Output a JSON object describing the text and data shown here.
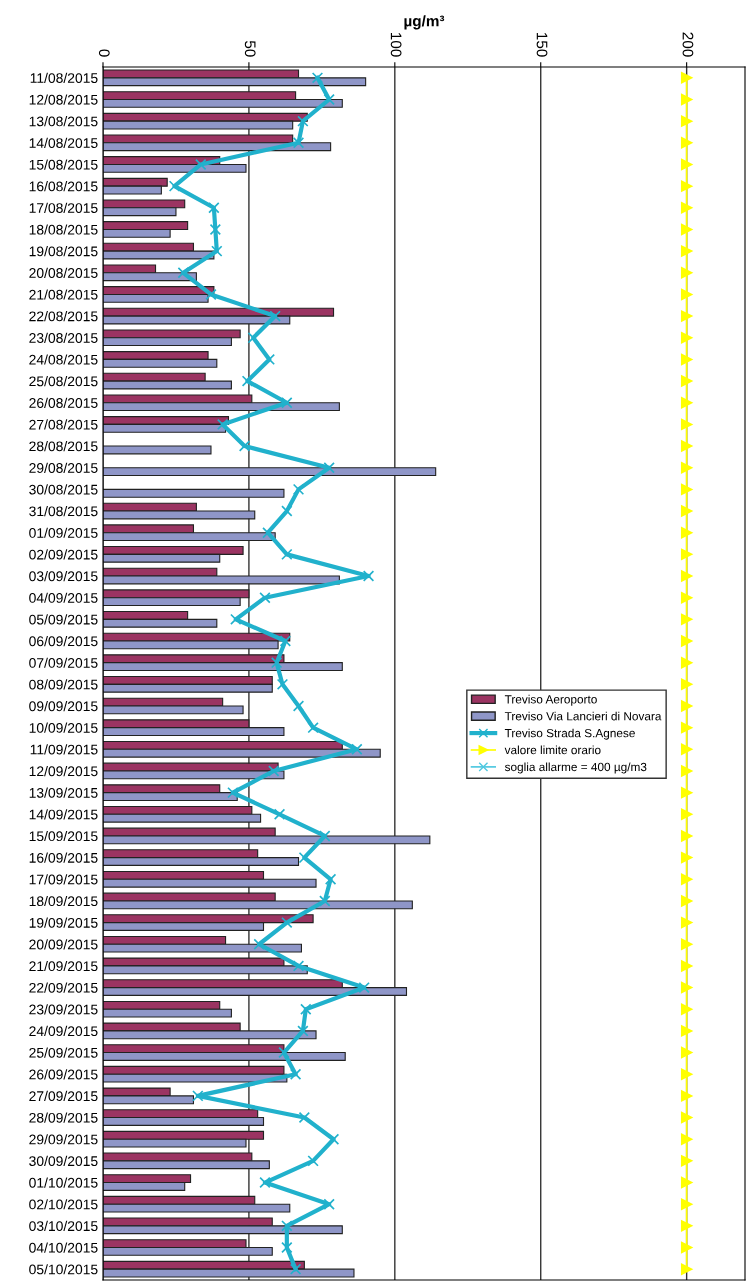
{
  "chart_data": {
    "type": "bar",
    "orientation": "horizontal",
    "xlabel": "µg/m³",
    "categories": [
      "11/08/2015",
      "12/08/2015",
      "13/08/2015",
      "14/08/2015",
      "15/08/2015",
      "16/08/2015",
      "17/08/2015",
      "18/08/2015",
      "19/08/2015",
      "20/08/2015",
      "21/08/2015",
      "22/08/2015",
      "23/08/2015",
      "24/08/2015",
      "25/08/2015",
      "26/08/2015",
      "27/08/2015",
      "28/08/2015",
      "29/08/2015",
      "30/08/2015",
      "31/08/2015",
      "01/09/2015",
      "02/09/2015",
      "03/09/2015",
      "04/09/2015",
      "05/09/2015",
      "06/09/2015",
      "07/09/2015",
      "08/09/2015",
      "09/09/2015",
      "10/09/2015",
      "11/09/2015",
      "12/09/2015",
      "13/09/2015",
      "14/09/2015",
      "15/09/2015",
      "16/09/2015",
      "17/09/2015",
      "18/09/2015",
      "19/09/2015",
      "20/09/2015",
      "21/09/2015",
      "22/09/2015",
      "23/09/2015",
      "24/09/2015",
      "25/09/2015",
      "26/09/2015",
      "27/09/2015",
      "28/09/2015",
      "29/09/2015",
      "30/09/2015",
      "01/10/2015",
      "02/10/2015",
      "03/10/2015",
      "04/10/2015",
      "05/10/2015"
    ],
    "series": [
      {
        "name": "Treviso Aeroporto",
        "color": "#9b3462",
        "values": [
          67,
          66,
          70,
          65,
          40,
          22,
          28,
          29,
          31,
          18,
          38,
          79,
          47,
          36,
          35,
          51,
          43,
          null,
          null,
          null,
          32,
          31,
          48,
          39,
          50,
          29,
          64,
          62,
          58,
          41,
          50,
          82,
          60,
          40,
          51,
          59,
          53,
          55,
          59,
          72,
          42,
          62,
          82,
          40,
          47,
          62,
          62,
          23,
          53,
          55,
          51,
          30,
          52,
          58,
          49,
          69
        ]
      },
      {
        "name": "Treviso Via Lancieri di Novara",
        "color": "#8f96c8",
        "values": [
          90,
          82,
          65,
          78,
          49,
          20,
          25,
          23,
          38,
          32,
          36,
          64,
          44,
          39,
          44,
          81,
          42,
          37,
          114,
          62,
          52,
          59,
          40,
          81,
          47,
          39,
          60,
          82,
          58,
          48,
          62,
          95,
          62,
          46,
          54,
          112,
          67,
          73,
          106,
          55,
          68,
          70,
          104,
          44,
          73,
          83,
          63,
          31,
          55,
          49,
          57,
          28,
          64,
          82,
          58,
          86
        ]
      },
      {
        "name": "Treviso Strada S.Agnese",
        "type": "line",
        "color": "#21b1cc",
        "marker": "cross",
        "values": [
          73.5,
          77.5,
          68.5,
          67,
          33.5,
          24.5,
          38,
          38.5,
          39,
          27.5,
          37,
          59,
          51.5,
          57,
          49.5,
          63,
          41,
          48.5,
          77.5,
          67,
          63,
          56.5,
          63,
          91,
          55.5,
          45.5,
          62.5,
          59.5,
          61.5,
          67,
          72,
          87,
          58.5,
          44.5,
          60.5,
          76,
          69,
          78,
          76,
          63,
          53.5,
          67,
          89.5,
          69.5,
          68.5,
          62,
          66,
          32.5,
          69,
          79,
          72,
          55.5,
          77.5,
          63,
          63,
          66
        ]
      },
      {
        "name": "valore limite orario",
        "type": "line",
        "color": "#ffff00",
        "marker": "triangle",
        "values": [
          200,
          200,
          200,
          200,
          200,
          200,
          200,
          200,
          200,
          200,
          200,
          200,
          200,
          200,
          200,
          200,
          200,
          200,
          200,
          200,
          200,
          200,
          200,
          200,
          200,
          200,
          200,
          200,
          200,
          200,
          200,
          200,
          200,
          200,
          200,
          200,
          200,
          200,
          200,
          200,
          200,
          200,
          200,
          200,
          200,
          200,
          200,
          200,
          200,
          200,
          200,
          200,
          200,
          200,
          200,
          200
        ]
      },
      {
        "name": "soglia allarme = 400 µg/m3",
        "type": "line",
        "color": "#4fc8e0",
        "marker": "cross",
        "values": [
          null,
          null,
          null,
          null,
          null,
          null,
          null,
          null,
          null,
          null,
          null,
          null,
          null,
          null,
          null,
          null,
          null,
          null,
          null,
          null,
          null,
          null,
          null,
          null,
          null,
          null,
          null,
          null,
          null,
          null,
          null,
          null,
          null,
          null,
          null,
          null,
          null,
          null,
          null,
          null,
          null,
          null,
          null,
          null,
          null,
          null,
          null,
          null,
          null,
          null,
          null,
          null,
          null,
          null,
          null,
          null
        ]
      }
    ],
    "xlim": [
      0,
      220
    ],
    "xticks": [
      0,
      50,
      100,
      150,
      200
    ],
    "grid": "x",
    "legend": "right"
  }
}
